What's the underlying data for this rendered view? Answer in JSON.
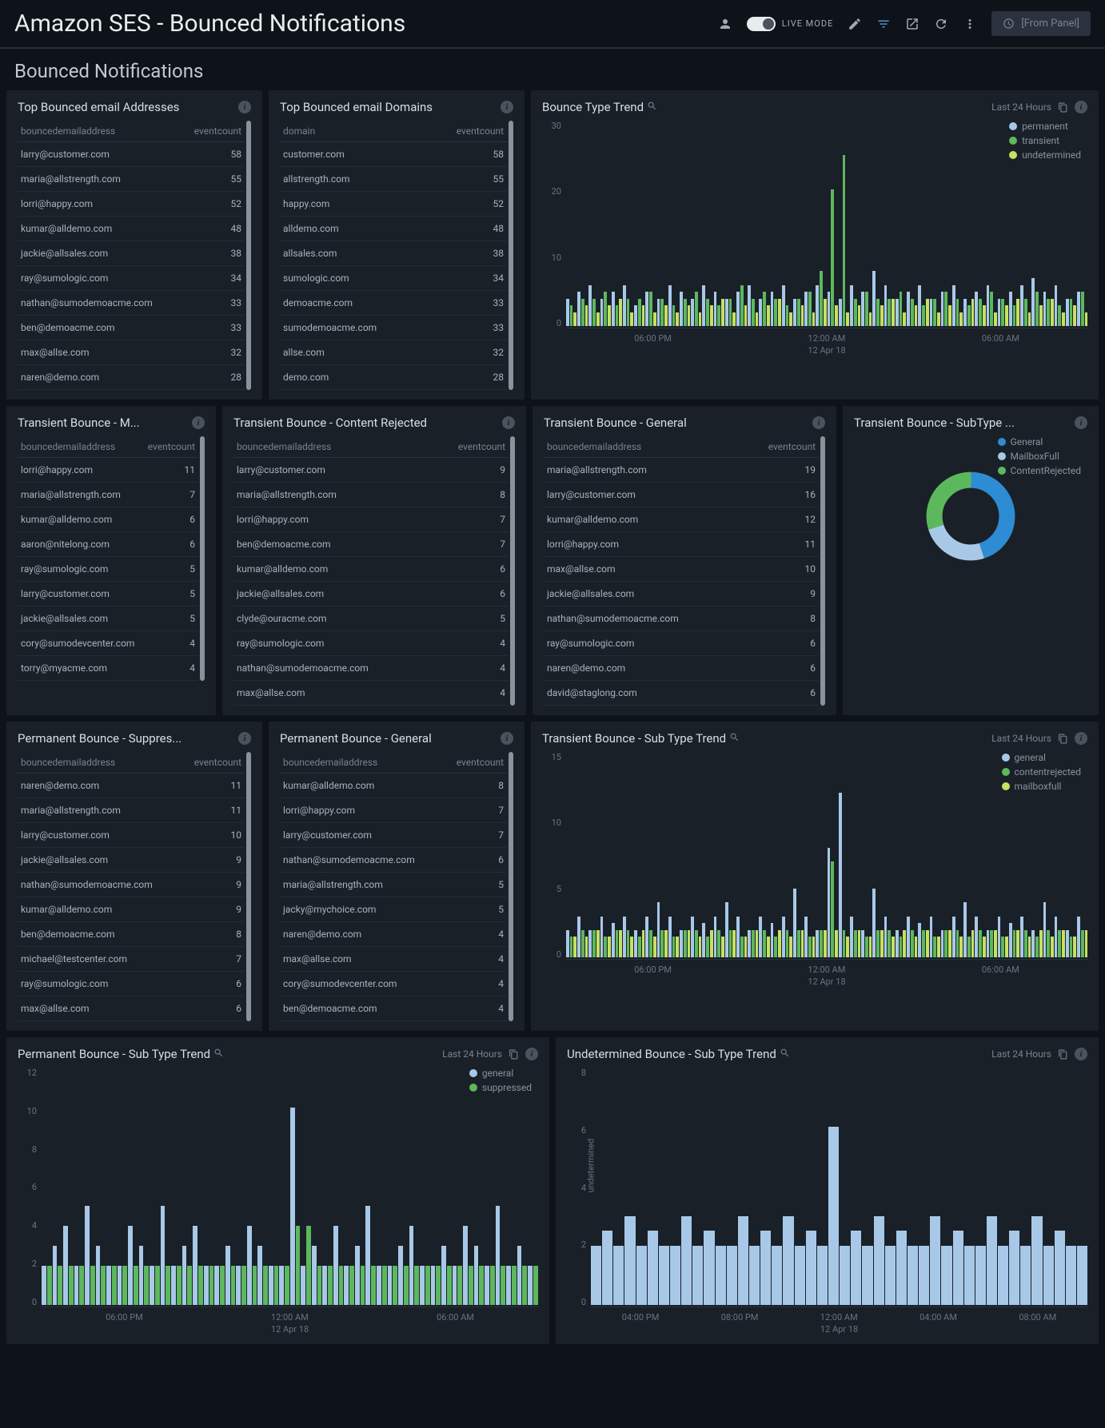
{
  "header": {
    "title": "Amazon SES - Bounced Notifications",
    "live_label": "LIVE MODE",
    "from_panel": "[From Panel]"
  },
  "section_title": "Bounced Notifications",
  "colors": {
    "permanent": "#a8c8e8",
    "transient": "#5cb85c",
    "undetermined": "#c8e060",
    "general": "#2e8cd4",
    "mailboxfull": "#a8c8e8",
    "contentrejected": "#5cb85c",
    "general2": "#a8c8e8",
    "suppressed": "#5cb85c",
    "mailboxfull2": "#c8e060"
  },
  "panels": {
    "top_addr": {
      "title": "Top Bounced email Addresses",
      "cols": [
        "bouncedemailaddress",
        "eventcount"
      ],
      "rows": [
        [
          "larry@customer.com",
          "58"
        ],
        [
          "maria@allstrength.com",
          "55"
        ],
        [
          "lorri@happy.com",
          "52"
        ],
        [
          "kumar@alldemo.com",
          "48"
        ],
        [
          "jackie@allsales.com",
          "38"
        ],
        [
          "ray@sumologic.com",
          "34"
        ],
        [
          "nathan@sumodemoacme.com",
          "33"
        ],
        [
          "ben@demoacme.com",
          "33"
        ],
        [
          "max@allse.com",
          "32"
        ],
        [
          "naren@demo.com",
          "28"
        ]
      ]
    },
    "top_dom": {
      "title": "Top Bounced email Domains",
      "cols": [
        "domain",
        "eventcount"
      ],
      "rows": [
        [
          "customer.com",
          "58"
        ],
        [
          "allstrength.com",
          "55"
        ],
        [
          "happy.com",
          "52"
        ],
        [
          "alldemo.com",
          "48"
        ],
        [
          "allsales.com",
          "38"
        ],
        [
          "sumologic.com",
          "34"
        ],
        [
          "demoacme.com",
          "33"
        ],
        [
          "sumodemoacme.com",
          "33"
        ],
        [
          "allse.com",
          "32"
        ],
        [
          "demo.com",
          "28"
        ]
      ]
    },
    "bounce_trend": {
      "title": "Bounce Type Trend",
      "range": "Last 24 Hours",
      "ylim": 30,
      "yticks": [
        30,
        20,
        10,
        0
      ],
      "xticks": [
        "06:00 PM",
        "12:00 AM",
        "06:00 AM"
      ],
      "xsub": "12 Apr 18",
      "legend": [
        {
          "label": "permanent",
          "color": "#a8c8e8"
        },
        {
          "label": "transient",
          "color": "#5cb85c"
        },
        {
          "label": "undetermined",
          "color": "#c8e060"
        }
      ],
      "bars": [
        [
          4,
          3,
          2
        ],
        [
          5,
          4,
          3
        ],
        [
          6,
          4,
          2
        ],
        [
          4,
          5,
          3
        ],
        [
          5,
          3,
          4
        ],
        [
          6,
          4,
          2
        ],
        [
          3,
          4,
          3
        ],
        [
          5,
          5,
          2
        ],
        [
          4,
          4,
          3
        ],
        [
          6,
          3,
          2
        ],
        [
          5,
          4,
          3
        ],
        [
          4,
          5,
          2
        ],
        [
          6,
          4,
          3
        ],
        [
          5,
          3,
          4
        ],
        [
          4,
          4,
          2
        ],
        [
          5,
          6,
          3
        ],
        [
          6,
          4,
          2
        ],
        [
          4,
          5,
          3
        ],
        [
          5,
          4,
          4
        ],
        [
          6,
          3,
          2
        ],
        [
          4,
          4,
          3
        ],
        [
          5,
          5,
          2
        ],
        [
          6,
          8,
          4
        ],
        [
          5,
          20,
          3
        ],
        [
          4,
          25,
          2
        ],
        [
          6,
          4,
          3
        ],
        [
          5,
          5,
          2
        ],
        [
          8,
          4,
          3
        ],
        [
          6,
          4,
          4
        ],
        [
          4,
          5,
          2
        ],
        [
          5,
          4,
          3
        ],
        [
          6,
          3,
          4
        ],
        [
          4,
          4,
          2
        ],
        [
          5,
          5,
          3
        ],
        [
          6,
          4,
          2
        ],
        [
          4,
          3,
          4
        ],
        [
          5,
          4,
          3
        ],
        [
          6,
          5,
          2
        ],
        [
          4,
          4,
          3
        ],
        [
          5,
          3,
          4
        ],
        [
          6,
          4,
          2
        ],
        [
          7,
          5,
          3
        ],
        [
          5,
          4,
          4
        ],
        [
          6,
          3,
          2
        ],
        [
          4,
          4,
          3
        ],
        [
          5,
          5,
          2
        ]
      ]
    },
    "trans_m": {
      "title": "Transient Bounce - M...",
      "cols": [
        "bouncedemailaddress",
        "eventcount"
      ],
      "rows": [
        [
          "lorri@happy.com",
          "11"
        ],
        [
          "maria@allstrength.com",
          "7"
        ],
        [
          "kumar@alldemo.com",
          "6"
        ],
        [
          "aaron@nitelong.com",
          "6"
        ],
        [
          "ray@sumologic.com",
          "5"
        ],
        [
          "larry@customer.com",
          "5"
        ],
        [
          "jackie@allsales.com",
          "5"
        ],
        [
          "cory@sumodevcenter.com",
          "4"
        ],
        [
          "torry@myacme.com",
          "4"
        ]
      ]
    },
    "trans_cr": {
      "title": "Transient Bounce - Content Rejected",
      "cols": [
        "bouncedemailaddress",
        "eventcount"
      ],
      "rows": [
        [
          "larry@customer.com",
          "9"
        ],
        [
          "maria@allstrength.com",
          "8"
        ],
        [
          "lorri@happy.com",
          "7"
        ],
        [
          "ben@demoacme.com",
          "7"
        ],
        [
          "kumar@alldemo.com",
          "6"
        ],
        [
          "jackie@allsales.com",
          "6"
        ],
        [
          "clyde@ouracme.com",
          "5"
        ],
        [
          "ray@sumologic.com",
          "4"
        ],
        [
          "nathan@sumodemoacme.com",
          "4"
        ],
        [
          "max@allse.com",
          "4"
        ]
      ]
    },
    "trans_g": {
      "title": "Transient Bounce - General",
      "cols": [
        "bouncedemailaddress",
        "eventcount"
      ],
      "rows": [
        [
          "maria@allstrength.com",
          "19"
        ],
        [
          "larry@customer.com",
          "16"
        ],
        [
          "kumar@alldemo.com",
          "12"
        ],
        [
          "lorri@happy.com",
          "11"
        ],
        [
          "max@allse.com",
          "10"
        ],
        [
          "jackie@allsales.com",
          "9"
        ],
        [
          "nathan@sumodemoacme.com",
          "8"
        ],
        [
          "ray@sumologic.com",
          "6"
        ],
        [
          "naren@demo.com",
          "6"
        ],
        [
          "david@staglong.com",
          "6"
        ]
      ]
    },
    "trans_sub": {
      "title": "Transient Bounce - SubType ...",
      "legend": [
        {
          "label": "General",
          "color": "#2e8cd4"
        },
        {
          "label": "MailboxFull",
          "color": "#a8c8e8"
        },
        {
          "label": "ContentRejected",
          "color": "#5cb85c"
        }
      ],
      "slices": [
        {
          "pct": 45,
          "color": "#2e8cd4"
        },
        {
          "pct": 25,
          "color": "#a8c8e8"
        },
        {
          "pct": 30,
          "color": "#5cb85c"
        }
      ]
    },
    "perm_supp": {
      "title": "Permanent Bounce - Suppres...",
      "cols": [
        "bouncedemailaddress",
        "eventcount"
      ],
      "rows": [
        [
          "naren@demo.com",
          "11"
        ],
        [
          "maria@allstrength.com",
          "11"
        ],
        [
          "larry@customer.com",
          "10"
        ],
        [
          "jackie@allsales.com",
          "9"
        ],
        [
          "nathan@sumodemoacme.com",
          "9"
        ],
        [
          "kumar@alldemo.com",
          "9"
        ],
        [
          "ben@demoacme.com",
          "8"
        ],
        [
          "michael@testcenter.com",
          "7"
        ],
        [
          "ray@sumologic.com",
          "6"
        ],
        [
          "max@allse.com",
          "6"
        ]
      ]
    },
    "perm_g": {
      "title": "Permanent Bounce - General",
      "cols": [
        "bouncedemailaddress",
        "eventcount"
      ],
      "rows": [
        [
          "kumar@alldemo.com",
          "8"
        ],
        [
          "lorri@happy.com",
          "7"
        ],
        [
          "larry@customer.com",
          "7"
        ],
        [
          "nathan@sumodemoacme.com",
          "6"
        ],
        [
          "maria@allstrength.com",
          "5"
        ],
        [
          "jacky@mychoice.com",
          "5"
        ],
        [
          "naren@demo.com",
          "4"
        ],
        [
          "max@allse.com",
          "4"
        ],
        [
          "cory@sumodevcenter.com",
          "4"
        ],
        [
          "ben@demoacme.com",
          "4"
        ]
      ]
    },
    "trans_trend": {
      "title": "Transient Bounce - Sub Type Trend",
      "range": "Last 24 Hours",
      "ylim": 15,
      "yticks": [
        15,
        10,
        5,
        0
      ],
      "xticks": [
        "06:00 PM",
        "12:00 AM",
        "06:00 AM"
      ],
      "xsub": "12 Apr 18",
      "legend": [
        {
          "label": "general",
          "color": "#a8c8e8"
        },
        {
          "label": "contentrejected",
          "color": "#5cb85c"
        },
        {
          "label": "mailboxfull",
          "color": "#c8e060"
        }
      ],
      "bars": [
        [
          2,
          1.5,
          1.5
        ],
        [
          3,
          2,
          1.5
        ],
        [
          2,
          2,
          2
        ],
        [
          3,
          1.5,
          1.5
        ],
        [
          2.5,
          2,
          2
        ],
        [
          3,
          2,
          1.5
        ],
        [
          2,
          1.5,
          2
        ],
        [
          3,
          2,
          1.5
        ],
        [
          4,
          2,
          2
        ],
        [
          3,
          1.5,
          1.5
        ],
        [
          2,
          2,
          2
        ],
        [
          3,
          2,
          1.5
        ],
        [
          2.5,
          1.5,
          2
        ],
        [
          3,
          2,
          1.5
        ],
        [
          4,
          2,
          2
        ],
        [
          3,
          1.5,
          1.5
        ],
        [
          2,
          2,
          2
        ],
        [
          3,
          2,
          1.5
        ],
        [
          2.5,
          1.5,
          2
        ],
        [
          3,
          2,
          1.5
        ],
        [
          5,
          2,
          2
        ],
        [
          3,
          1.5,
          1.5
        ],
        [
          2,
          2,
          2
        ],
        [
          8,
          7,
          2
        ],
        [
          12,
          2,
          1.5
        ],
        [
          3,
          2,
          2
        ],
        [
          2,
          1.5,
          1.5
        ],
        [
          5,
          2,
          2
        ],
        [
          3,
          2,
          1.5
        ],
        [
          2,
          1.5,
          2
        ],
        [
          3,
          2,
          1.5
        ],
        [
          2.5,
          2,
          2
        ],
        [
          3,
          1.5,
          1.5
        ],
        [
          2,
          2,
          2
        ],
        [
          3,
          2,
          1.5
        ],
        [
          4,
          1.5,
          2
        ],
        [
          3,
          2,
          1.5
        ],
        [
          2,
          2,
          2
        ],
        [
          3,
          1.5,
          1.5
        ],
        [
          2.5,
          2,
          2
        ],
        [
          3,
          2,
          1.5
        ],
        [
          2,
          1.5,
          2
        ],
        [
          4,
          2,
          1.5
        ],
        [
          3,
          2,
          2
        ],
        [
          2,
          1.5,
          1.5
        ],
        [
          3,
          2,
          2
        ]
      ]
    },
    "perm_trend": {
      "title": "Permanent Bounce - Sub Type Trend",
      "range": "Last 24 Hours",
      "ylim": 12,
      "yticks": [
        12,
        10,
        8,
        6,
        4,
        2,
        0
      ],
      "xticks": [
        "06:00 PM",
        "12:00 AM",
        "06:00 AM"
      ],
      "xsub": "12 Apr 18",
      "legend": [
        {
          "label": "general",
          "color": "#a8c8e8"
        },
        {
          "label": "suppressed",
          "color": "#5cb85c"
        }
      ],
      "bars": [
        [
          2,
          2
        ],
        [
          3,
          2
        ],
        [
          4,
          2
        ],
        [
          2,
          2
        ],
        [
          5,
          2
        ],
        [
          3,
          2
        ],
        [
          2,
          2
        ],
        [
          2,
          2
        ],
        [
          4,
          2
        ],
        [
          3,
          2
        ],
        [
          2,
          2
        ],
        [
          5,
          2
        ],
        [
          2,
          2
        ],
        [
          3,
          2
        ],
        [
          4,
          2
        ],
        [
          2,
          2
        ],
        [
          2,
          2
        ],
        [
          3,
          2
        ],
        [
          2,
          2
        ],
        [
          4,
          2
        ],
        [
          3,
          2
        ],
        [
          2,
          2
        ],
        [
          2,
          2
        ],
        [
          10,
          4
        ],
        [
          2,
          4
        ],
        [
          3,
          2
        ],
        [
          2,
          2
        ],
        [
          4,
          2
        ],
        [
          2,
          2
        ],
        [
          3,
          2
        ],
        [
          5,
          2
        ],
        [
          2,
          2
        ],
        [
          2,
          2
        ],
        [
          3,
          2
        ],
        [
          4,
          2
        ],
        [
          2,
          2
        ],
        [
          2,
          2
        ],
        [
          3,
          2
        ],
        [
          2,
          2
        ],
        [
          4,
          2
        ],
        [
          3,
          2
        ],
        [
          2,
          2
        ],
        [
          5,
          2
        ],
        [
          2,
          2
        ],
        [
          3,
          2
        ],
        [
          2,
          2
        ]
      ]
    },
    "undet_trend": {
      "title": "Undetermined Bounce - Sub Type Trend",
      "range": "Last 24 Hours",
      "ylim": 8,
      "yticks": [
        8,
        6,
        4,
        2,
        0
      ],
      "ylabel": "undetermined",
      "xticks": [
        "04:00 PM",
        "08:00 PM",
        "12:00 AM",
        "04:00 AM",
        "08:00 AM"
      ],
      "xsub": "12 Apr 18",
      "colors": [
        "#a8c8e8"
      ],
      "bars": [
        [
          2
        ],
        [
          2.5
        ],
        [
          2
        ],
        [
          3
        ],
        [
          2
        ],
        [
          2.5
        ],
        [
          2
        ],
        [
          2
        ],
        [
          3
        ],
        [
          2
        ],
        [
          2.5
        ],
        [
          2
        ],
        [
          2
        ],
        [
          3
        ],
        [
          2
        ],
        [
          2.5
        ],
        [
          2
        ],
        [
          3
        ],
        [
          2
        ],
        [
          2.5
        ],
        [
          2
        ],
        [
          6
        ],
        [
          2
        ],
        [
          2.5
        ],
        [
          2
        ],
        [
          3
        ],
        [
          2
        ],
        [
          2.5
        ],
        [
          2
        ],
        [
          2
        ],
        [
          3
        ],
        [
          2
        ],
        [
          2.5
        ],
        [
          2
        ],
        [
          2
        ],
        [
          3
        ],
        [
          2
        ],
        [
          2.5
        ],
        [
          2
        ],
        [
          3
        ],
        [
          2
        ],
        [
          2.5
        ],
        [
          2
        ],
        [
          2
        ]
      ]
    }
  }
}
